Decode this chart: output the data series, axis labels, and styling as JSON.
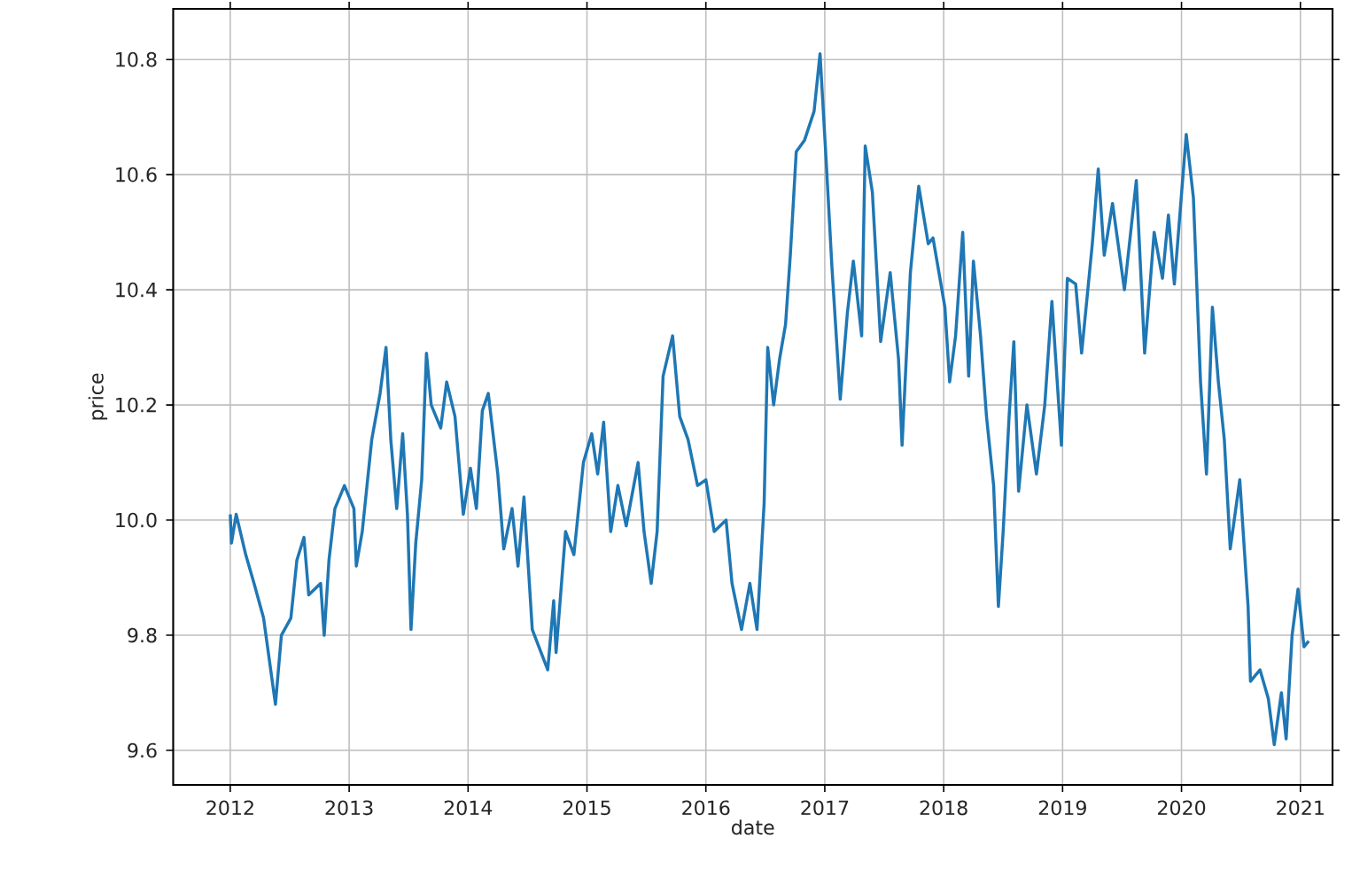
{
  "chart_data": {
    "type": "line",
    "xlabel": "date",
    "ylabel": "price",
    "xlim": [
      2011.52,
      2021.27
    ],
    "ylim": [
      9.54,
      10.888
    ],
    "xticks": [
      2012,
      2013,
      2014,
      2015,
      2016,
      2017,
      2018,
      2019,
      2020,
      2021
    ],
    "yticks": [
      {
        "value": 9.6,
        "label": "9.6"
      },
      {
        "value": 9.8,
        "label": "9.8"
      },
      {
        "value": 10.0,
        "label": "10.0"
      },
      {
        "value": 10.2,
        "label": "10.2"
      },
      {
        "value": 10.4,
        "label": "10.4"
      },
      {
        "value": 10.6,
        "label": "10.6"
      },
      {
        "value": 10.8,
        "label": "10.8"
      }
    ],
    "grid": true,
    "series": [
      {
        "color": "#1f77b4",
        "x": [
          2012.0,
          2012.01,
          2012.05,
          2012.13,
          2012.2,
          2012.28,
          2012.34,
          2012.38,
          2012.43,
          2012.51,
          2012.56,
          2012.62,
          2012.66,
          2012.76,
          2012.79,
          2012.83,
          2012.88,
          2012.96,
          2013.04,
          2013.06,
          2013.11,
          2013.19,
          2013.26,
          2013.31,
          2013.35,
          2013.4,
          2013.45,
          2013.49,
          2013.52,
          2013.56,
          2013.61,
          2013.65,
          2013.69,
          2013.77,
          2013.82,
          2013.89,
          2013.96,
          2014.02,
          2014.07,
          2014.12,
          2014.17,
          2014.25,
          2014.3,
          2014.37,
          2014.42,
          2014.47,
          2014.54,
          2014.67,
          2014.72,
          2014.74,
          2014.82,
          2014.89,
          2014.97,
          2015.04,
          2015.09,
          2015.14,
          2015.2,
          2015.26,
          2015.33,
          2015.43,
          2015.48,
          2015.54,
          2015.59,
          2015.64,
          2015.72,
          2015.78,
          2015.85,
          2015.93,
          2016.0,
          2016.07,
          2016.17,
          2016.22,
          2016.3,
          2016.37,
          2016.43,
          2016.49,
          2016.52,
          2016.57,
          2016.62,
          2016.67,
          2016.71,
          2016.76,
          2016.83,
          2016.91,
          2016.96,
          2017.01,
          2017.06,
          2017.13,
          2017.19,
          2017.24,
          2017.31,
          2017.34,
          2017.4,
          2017.47,
          2017.55,
          2017.62,
          2017.65,
          2017.72,
          2017.79,
          2017.87,
          2017.91,
          2018.01,
          2018.05,
          2018.1,
          2018.16,
          2018.21,
          2018.25,
          2018.31,
          2018.36,
          2018.42,
          2018.46,
          2018.5,
          2018.55,
          2018.59,
          2018.63,
          2018.7,
          2018.78,
          2018.85,
          2018.91,
          2018.99,
          2019.04,
          2019.11,
          2019.16,
          2019.25,
          2019.3,
          2019.35,
          2019.42,
          2019.52,
          2019.62,
          2019.69,
          2019.77,
          2019.84,
          2019.89,
          2019.94,
          2020.04,
          2020.1,
          2020.16,
          2020.21,
          2020.26,
          2020.31,
          2020.36,
          2020.41,
          2020.49,
          2020.56,
          2020.58,
          2020.66,
          2020.73,
          2020.78,
          2020.84,
          2020.88,
          2020.93,
          2020.98,
          2021.03,
          2021.07
        ],
        "values": [
          10.01,
          9.96,
          10.01,
          9.94,
          9.89,
          9.83,
          9.74,
          9.68,
          9.8,
          9.83,
          9.93,
          9.97,
          9.87,
          9.89,
          9.8,
          9.93,
          10.02,
          10.06,
          10.02,
          9.92,
          9.98,
          10.14,
          10.22,
          10.3,
          10.14,
          10.02,
          10.15,
          10.01,
          9.81,
          9.96,
          10.07,
          10.29,
          10.2,
          10.16,
          10.24,
          10.18,
          10.01,
          10.09,
          10.02,
          10.19,
          10.22,
          10.08,
          9.95,
          10.02,
          9.92,
          10.04,
          9.81,
          9.74,
          9.86,
          9.77,
          9.98,
          9.94,
          10.1,
          10.15,
          10.08,
          10.17,
          9.98,
          10.06,
          9.99,
          10.1,
          9.98,
          9.89,
          9.98,
          10.25,
          10.32,
          10.18,
          10.14,
          10.06,
          10.07,
          9.98,
          10.0,
          9.89,
          9.81,
          9.89,
          9.81,
          10.03,
          10.3,
          10.2,
          10.28,
          10.34,
          10.46,
          10.64,
          10.66,
          10.71,
          10.81,
          10.63,
          10.44,
          10.21,
          10.36,
          10.45,
          10.32,
          10.65,
          10.57,
          10.31,
          10.43,
          10.28,
          10.13,
          10.43,
          10.58,
          10.48,
          10.49,
          10.37,
          10.24,
          10.32,
          10.5,
          10.25,
          10.45,
          10.32,
          10.18,
          10.06,
          9.85,
          9.98,
          10.18,
          10.31,
          10.05,
          10.2,
          10.08,
          10.2,
          10.38,
          10.13,
          10.42,
          10.41,
          10.29,
          10.48,
          10.61,
          10.46,
          10.55,
          10.4,
          10.59,
          10.29,
          10.5,
          10.42,
          10.53,
          10.41,
          10.67,
          10.56,
          10.24,
          10.08,
          10.37,
          10.24,
          10.14,
          9.95,
          10.07,
          9.85,
          9.72,
          9.74,
          9.69,
          9.61,
          9.7,
          9.62,
          9.8,
          9.88,
          9.78,
          9.79
        ]
      }
    ]
  }
}
